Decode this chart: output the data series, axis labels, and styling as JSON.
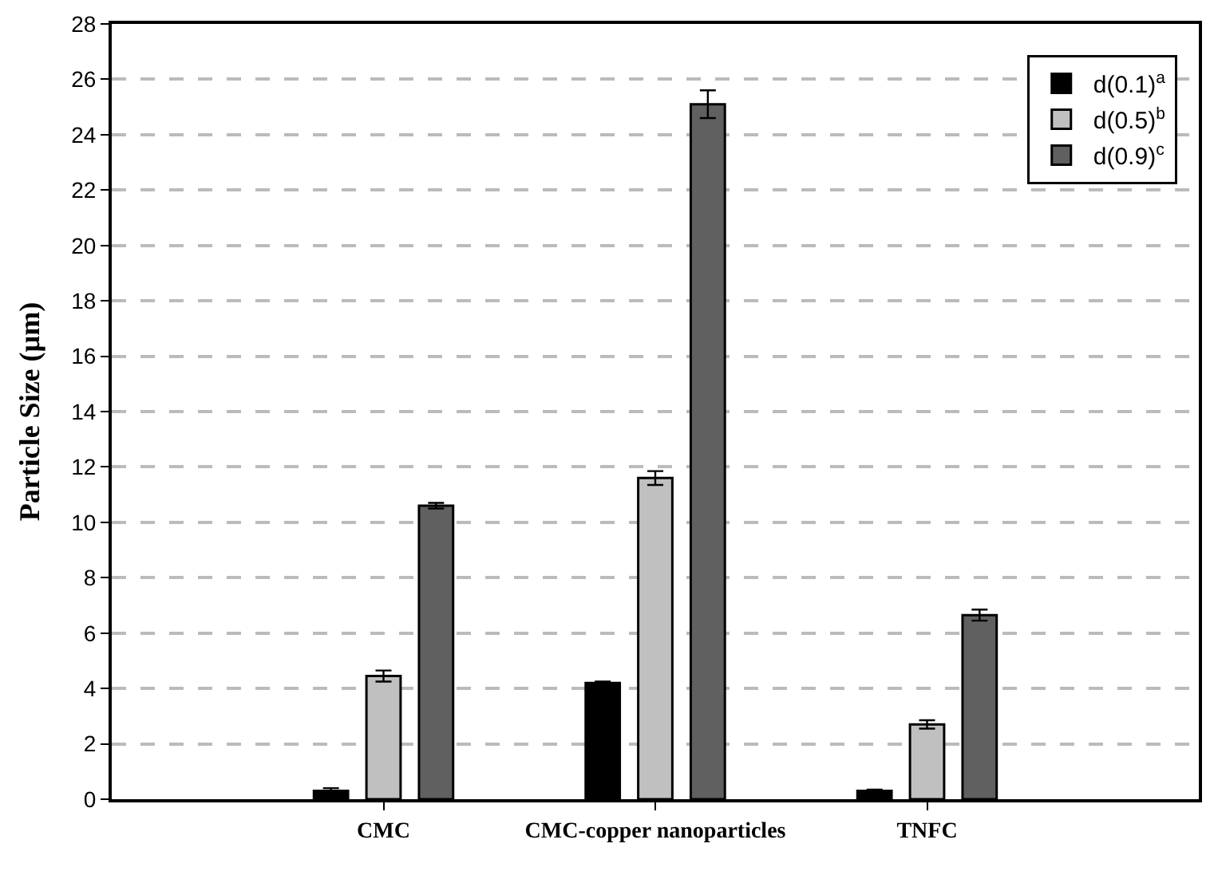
{
  "chart_data": {
    "type": "bar",
    "ylabel": "Particle Size (µm)",
    "categories": [
      "CMC",
      "CMC-copper nanoparticles",
      "TNFC"
    ],
    "series": [
      {
        "name": "d(0.1)$^{a}$",
        "color": "#000000",
        "values": [
          0.3,
          4.2,
          0.3
        ],
        "errors": [
          0.1,
          0.05,
          0.05
        ]
      },
      {
        "name": "d(0.5)$^{b}$",
        "color": "#c0c0c0",
        "values": [
          4.45,
          11.6,
          2.7
        ],
        "errors": [
          0.2,
          0.25,
          0.15
        ]
      },
      {
        "name": "d(0.9)$^{c}$",
        "color": "#606060",
        "values": [
          10.6,
          25.1,
          6.65
        ],
        "errors": [
          0.1,
          0.5,
          0.2
        ]
      }
    ],
    "ylim": [
      0,
      28
    ],
    "yticks": [
      0,
      2,
      4,
      6,
      8,
      10,
      12,
      14,
      16,
      18,
      20,
      22,
      24,
      26,
      28
    ],
    "grid": "y",
    "legend": "top right"
  }
}
